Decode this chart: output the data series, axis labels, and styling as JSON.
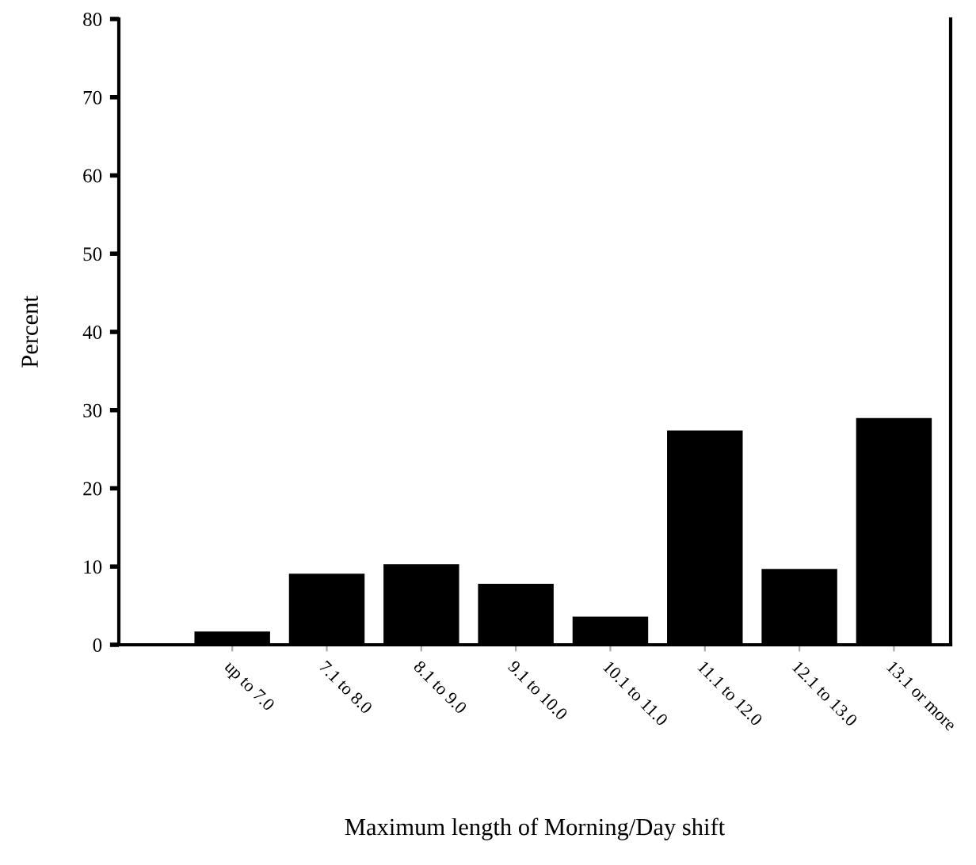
{
  "chart_data": {
    "type": "bar",
    "xlabel": "Maximum length of Morning/Day shift",
    "ylabel": "Percent",
    "categories": [
      "up to 7.0",
      "7.1 to 8.0",
      "8.1 to 9.0",
      "9.1 to 10.0",
      "10.1 to 11.0",
      "11.1 to 12.0",
      "12.1 to 13.0",
      "13.1 or more"
    ],
    "values": [
      1.7,
      9.1,
      10.3,
      7.8,
      3.6,
      27.4,
      9.7,
      29.0
    ],
    "color": "#000000",
    "ylim": [
      0,
      80
    ],
    "yticks": [
      0,
      10,
      20,
      30,
      40,
      50,
      60,
      70,
      80
    ],
    "grid": false
  }
}
